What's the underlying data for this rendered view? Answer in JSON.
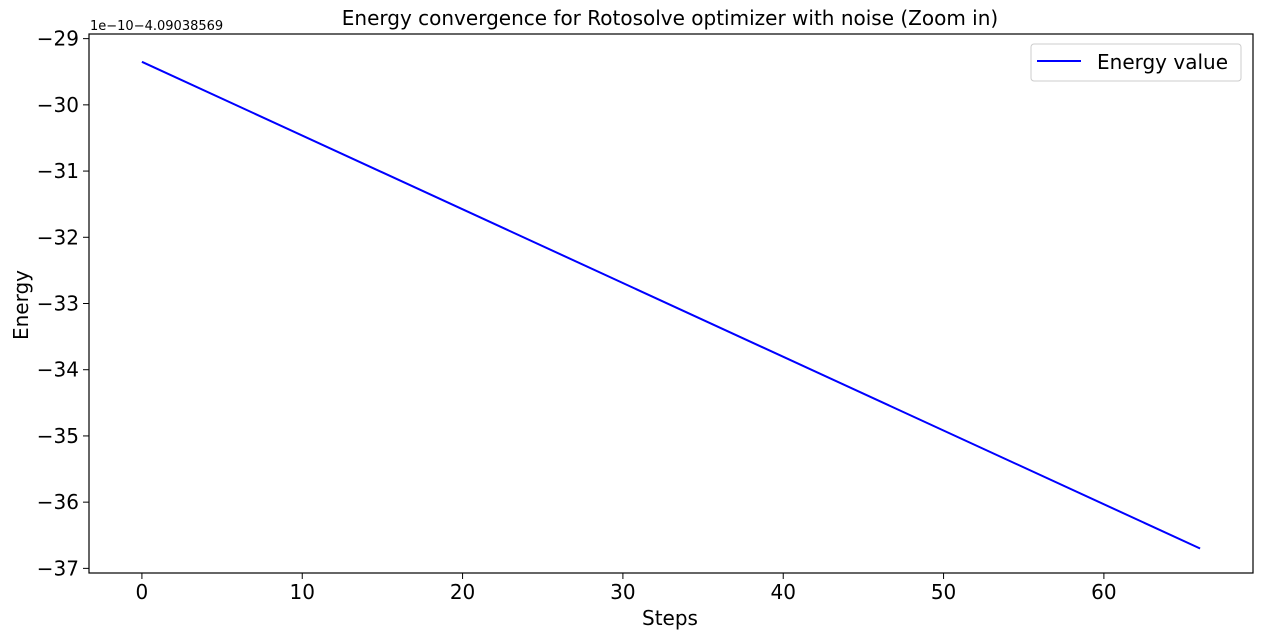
{
  "chart_data": {
    "type": "line",
    "title": "Energy convergence for Rotosolve optimizer with noise (Zoom in)",
    "xlabel": "Steps",
    "ylabel": "Energy",
    "y_offset_label": "1e−10−4.09038569",
    "x_ticks": [
      "0",
      "10",
      "20",
      "30",
      "40",
      "50",
      "60"
    ],
    "y_ticks": [
      "−29",
      "−30",
      "−31",
      "−32",
      "−33",
      "−34",
      "−35",
      "−36",
      "−37"
    ],
    "xlim": [
      -3.3,
      69.3
    ],
    "ylim": [
      -37.07,
      -28.93
    ],
    "legend_position": "top-right",
    "grid": false,
    "series": [
      {
        "name": "Energy value",
        "color": "#0000ff",
        "x": [
          0,
          66
        ],
        "y": [
          -29.35,
          -36.7
        ]
      }
    ]
  }
}
